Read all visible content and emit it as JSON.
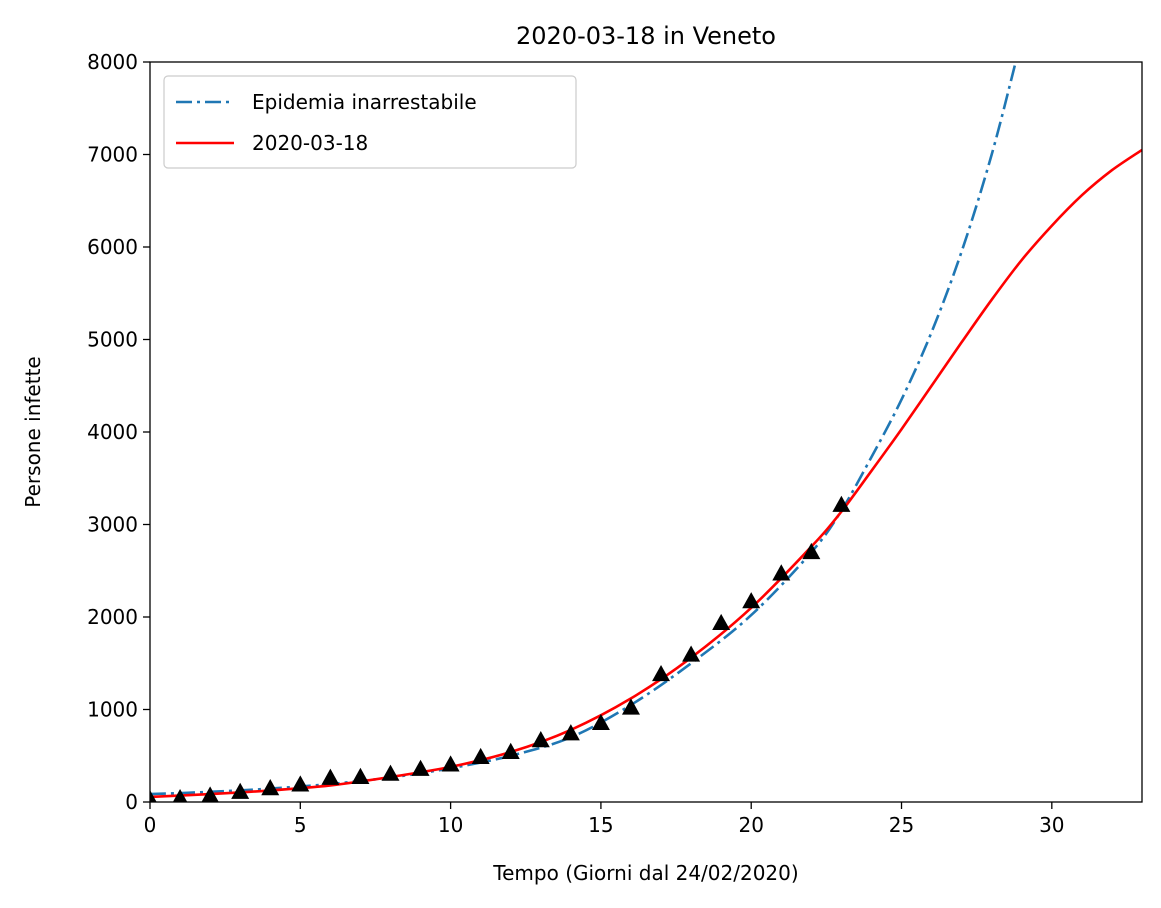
{
  "chart_data": {
    "type": "line",
    "title": "2020-03-18 in Veneto",
    "xlabel": "Tempo (Giorni dal 24/02/2020)",
    "ylabel": "Persone infette",
    "xlim": [
      0,
      33
    ],
    "ylim": [
      0,
      8000
    ],
    "xticks": [
      0,
      5,
      10,
      15,
      20,
      25,
      30
    ],
    "yticks": [
      0,
      1000,
      2000,
      3000,
      4000,
      5000,
      6000,
      7000,
      8000
    ],
    "grid": false,
    "legend_position": "top-left",
    "series": [
      {
        "name": "Epidemia inarrestabile",
        "style": "dashdot",
        "color": "#1f77b4",
        "x": [
          0,
          2,
          4,
          6,
          8,
          10,
          12,
          14,
          16,
          18,
          20,
          22,
          23,
          24,
          25,
          26,
          27,
          28,
          28.8
        ],
        "y": [
          85,
          110,
          145,
          195,
          265,
          365,
          500,
          700,
          1050,
          1500,
          2020,
          2700,
          3150,
          3730,
          4350,
          5080,
          5950,
          7000,
          8000
        ]
      },
      {
        "name": "2020-03-18",
        "style": "solid",
        "color": "#ff0000",
        "x": [
          0,
          2,
          4,
          6,
          8,
          10,
          12,
          14,
          16,
          18,
          20,
          22,
          23,
          24,
          25,
          26,
          27,
          28,
          29,
          30,
          31,
          32,
          33
        ],
        "y": [
          55,
          85,
          125,
          180,
          270,
          380,
          540,
          780,
          1120,
          1560,
          2100,
          2760,
          3140,
          3580,
          4030,
          4500,
          4970,
          5430,
          5860,
          6230,
          6560,
          6830,
          7050
        ]
      },
      {
        "name": "",
        "style": "markers",
        "marker": "triangle-up",
        "color": "#000000",
        "x": [
          0,
          1,
          2,
          3,
          4,
          5,
          6,
          7,
          8,
          9,
          10,
          11,
          12,
          13,
          14,
          15,
          16,
          17,
          18,
          19,
          20,
          21,
          22,
          23
        ],
        "y": [
          32,
          43,
          71,
          111,
          151,
          191,
          263,
          273,
          307,
          360,
          407,
          488,
          543,
          670,
          744,
          856,
          1023,
          1384,
          1595,
          1937,
          2172,
          2473,
          2704,
          3214
        ]
      }
    ]
  },
  "colors": {
    "tab_blue": "#1f77b4",
    "red": "#ff0000",
    "marker": "#000000"
  }
}
